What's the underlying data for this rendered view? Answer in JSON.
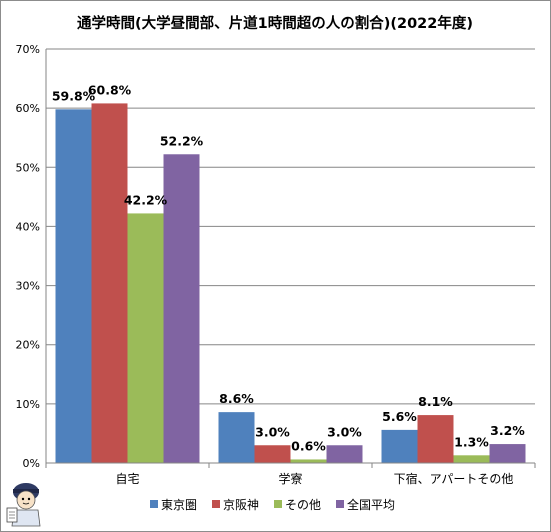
{
  "chart_data": {
    "type": "bar",
    "title": "通学時間(大学昼間部、片道1時間超の人の割合)(2022年度)",
    "categories": [
      "自宅",
      "学寮",
      "下宿、アパートその他"
    ],
    "series": [
      {
        "name": "東京圏",
        "values": [
          59.8,
          8.6,
          5.6
        ],
        "labels": [
          "59.8%",
          "8.6%",
          "5.6%"
        ],
        "color": "#4f81bd"
      },
      {
        "name": "京阪神",
        "values": [
          60.8,
          3.0,
          8.1
        ],
        "labels": [
          "60.8%",
          "3.0%",
          "8.1%"
        ],
        "color": "#c0504d"
      },
      {
        "name": "その他",
        "values": [
          42.2,
          0.6,
          1.3
        ],
        "labels": [
          "42.2%",
          "0.6%",
          "1.3%"
        ],
        "color": "#9bbb59"
      },
      {
        "name": "全国平均",
        "values": [
          52.2,
          3.0,
          3.2
        ],
        "labels": [
          "52.2%",
          "3.0%",
          "3.2%"
        ],
        "color": "#8064a2"
      }
    ],
    "yticks": [
      "0%",
      "10%",
      "20%",
      "30%",
      "40%",
      "50%",
      "60%",
      "70%"
    ],
    "ylim": [
      0,
      70
    ],
    "grid": true,
    "legend": "bottom"
  }
}
